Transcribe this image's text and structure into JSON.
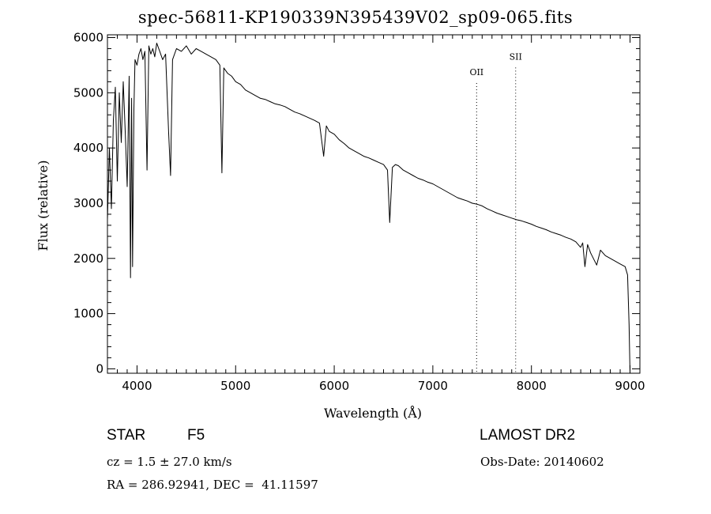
{
  "header": {
    "title": "spec-56811-KP190339N395439V02_sp09-065.fits"
  },
  "info": {
    "class": "STAR",
    "subclass": "F5",
    "survey": "LAMOST DR2",
    "cz": "cz = 1.5 ± 27.0 km/s",
    "obs_date": "Obs-Date: 20140602",
    "radec": "RA = 286.92941, DEC =  41.11597"
  },
  "chart_data": {
    "type": "line",
    "title": "spec-56811-KP190339N395439V02_sp09-065.fits",
    "xlabel": "Wavelength (Å)",
    "ylabel": "Flux (relative)",
    "xlim": [
      3700,
      9100
    ],
    "ylim": [
      -80,
      6050
    ],
    "xticks": [
      4000,
      5000,
      6000,
      7000,
      8000,
      9000
    ],
    "yticks": [
      0,
      1000,
      2000,
      3000,
      4000,
      5000,
      6000
    ],
    "grid": false,
    "line_color": "#000000",
    "annotations": [
      {
        "label": "OII",
        "x": 7444,
        "label_flux": 5320
      },
      {
        "label": "SII",
        "x": 7840,
        "label_flux": 5600
      }
    ],
    "series": [
      {
        "values": {
          "x": [
            3700,
            3720,
            3740,
            3760,
            3780,
            3800,
            3820,
            3840,
            3860,
            3880,
            3900,
            3920,
            3934,
            3945,
            3955,
            3968,
            3980,
            4000,
            4020,
            4040,
            4060,
            4080,
            4101,
            4120,
            4140,
            4160,
            4180,
            4200,
            4230,
            4260,
            4290,
            4320,
            4340,
            4360,
            4400,
            4450,
            4500,
            4550,
            4600,
            4650,
            4700,
            4750,
            4800,
            4840,
            4861,
            4880,
            4920,
            4960,
            5000,
            5050,
            5100,
            5150,
            5200,
            5250,
            5300,
            5350,
            5400,
            5450,
            5500,
            5550,
            5600,
            5650,
            5700,
            5750,
            5800,
            5850,
            5893,
            5920,
            5950,
            6000,
            6050,
            6100,
            6150,
            6200,
            6250,
            6300,
            6350,
            6400,
            6450,
            6500,
            6540,
            6563,
            6590,
            6620,
            6650,
            6700,
            6750,
            6800,
            6850,
            6900,
            6950,
            7000,
            7050,
            7100,
            7150,
            7200,
            7250,
            7300,
            7350,
            7400,
            7450,
            7500,
            7550,
            7600,
            7650,
            7700,
            7750,
            7800,
            7850,
            7900,
            7950,
            8000,
            8050,
            8100,
            8150,
            8200,
            8250,
            8300,
            8350,
            8400,
            8450,
            8498,
            8520,
            8542,
            8570,
            8600,
            8662,
            8700,
            8750,
            8800,
            8850,
            8900,
            8950,
            8975,
            8990,
            9000
          ],
          "y": [
            2700,
            4000,
            2900,
            4500,
            5100,
            3400,
            5000,
            4100,
            5200,
            4300,
            3300,
            5300,
            1650,
            4900,
            1850,
            4700,
            5600,
            5500,
            5700,
            5800,
            5600,
            5750,
            3600,
            5850,
            5700,
            5800,
            5650,
            5900,
            5750,
            5600,
            5700,
            4300,
            3500,
            5600,
            5800,
            5750,
            5850,
            5700,
            5800,
            5750,
            5700,
            5650,
            5600,
            5500,
            3550,
            5450,
            5350,
            5300,
            5200,
            5150,
            5050,
            5000,
            4950,
            4900,
            4880,
            4840,
            4800,
            4780,
            4750,
            4700,
            4650,
            4620,
            4580,
            4540,
            4500,
            4450,
            3850,
            4400,
            4300,
            4250,
            4150,
            4080,
            4000,
            3950,
            3900,
            3850,
            3820,
            3780,
            3740,
            3700,
            3600,
            2650,
            3650,
            3700,
            3680,
            3600,
            3550,
            3500,
            3450,
            3420,
            3380,
            3350,
            3300,
            3250,
            3200,
            3150,
            3100,
            3070,
            3040,
            3000,
            2980,
            2950,
            2900,
            2860,
            2820,
            2790,
            2760,
            2730,
            2700,
            2680,
            2650,
            2620,
            2580,
            2550,
            2520,
            2480,
            2450,
            2420,
            2380,
            2350,
            2300,
            2200,
            2280,
            1850,
            2250,
            2100,
            1880,
            2150,
            2050,
            2000,
            1950,
            1900,
            1850,
            1700,
            800,
            -80
          ]
        }
      }
    ]
  }
}
